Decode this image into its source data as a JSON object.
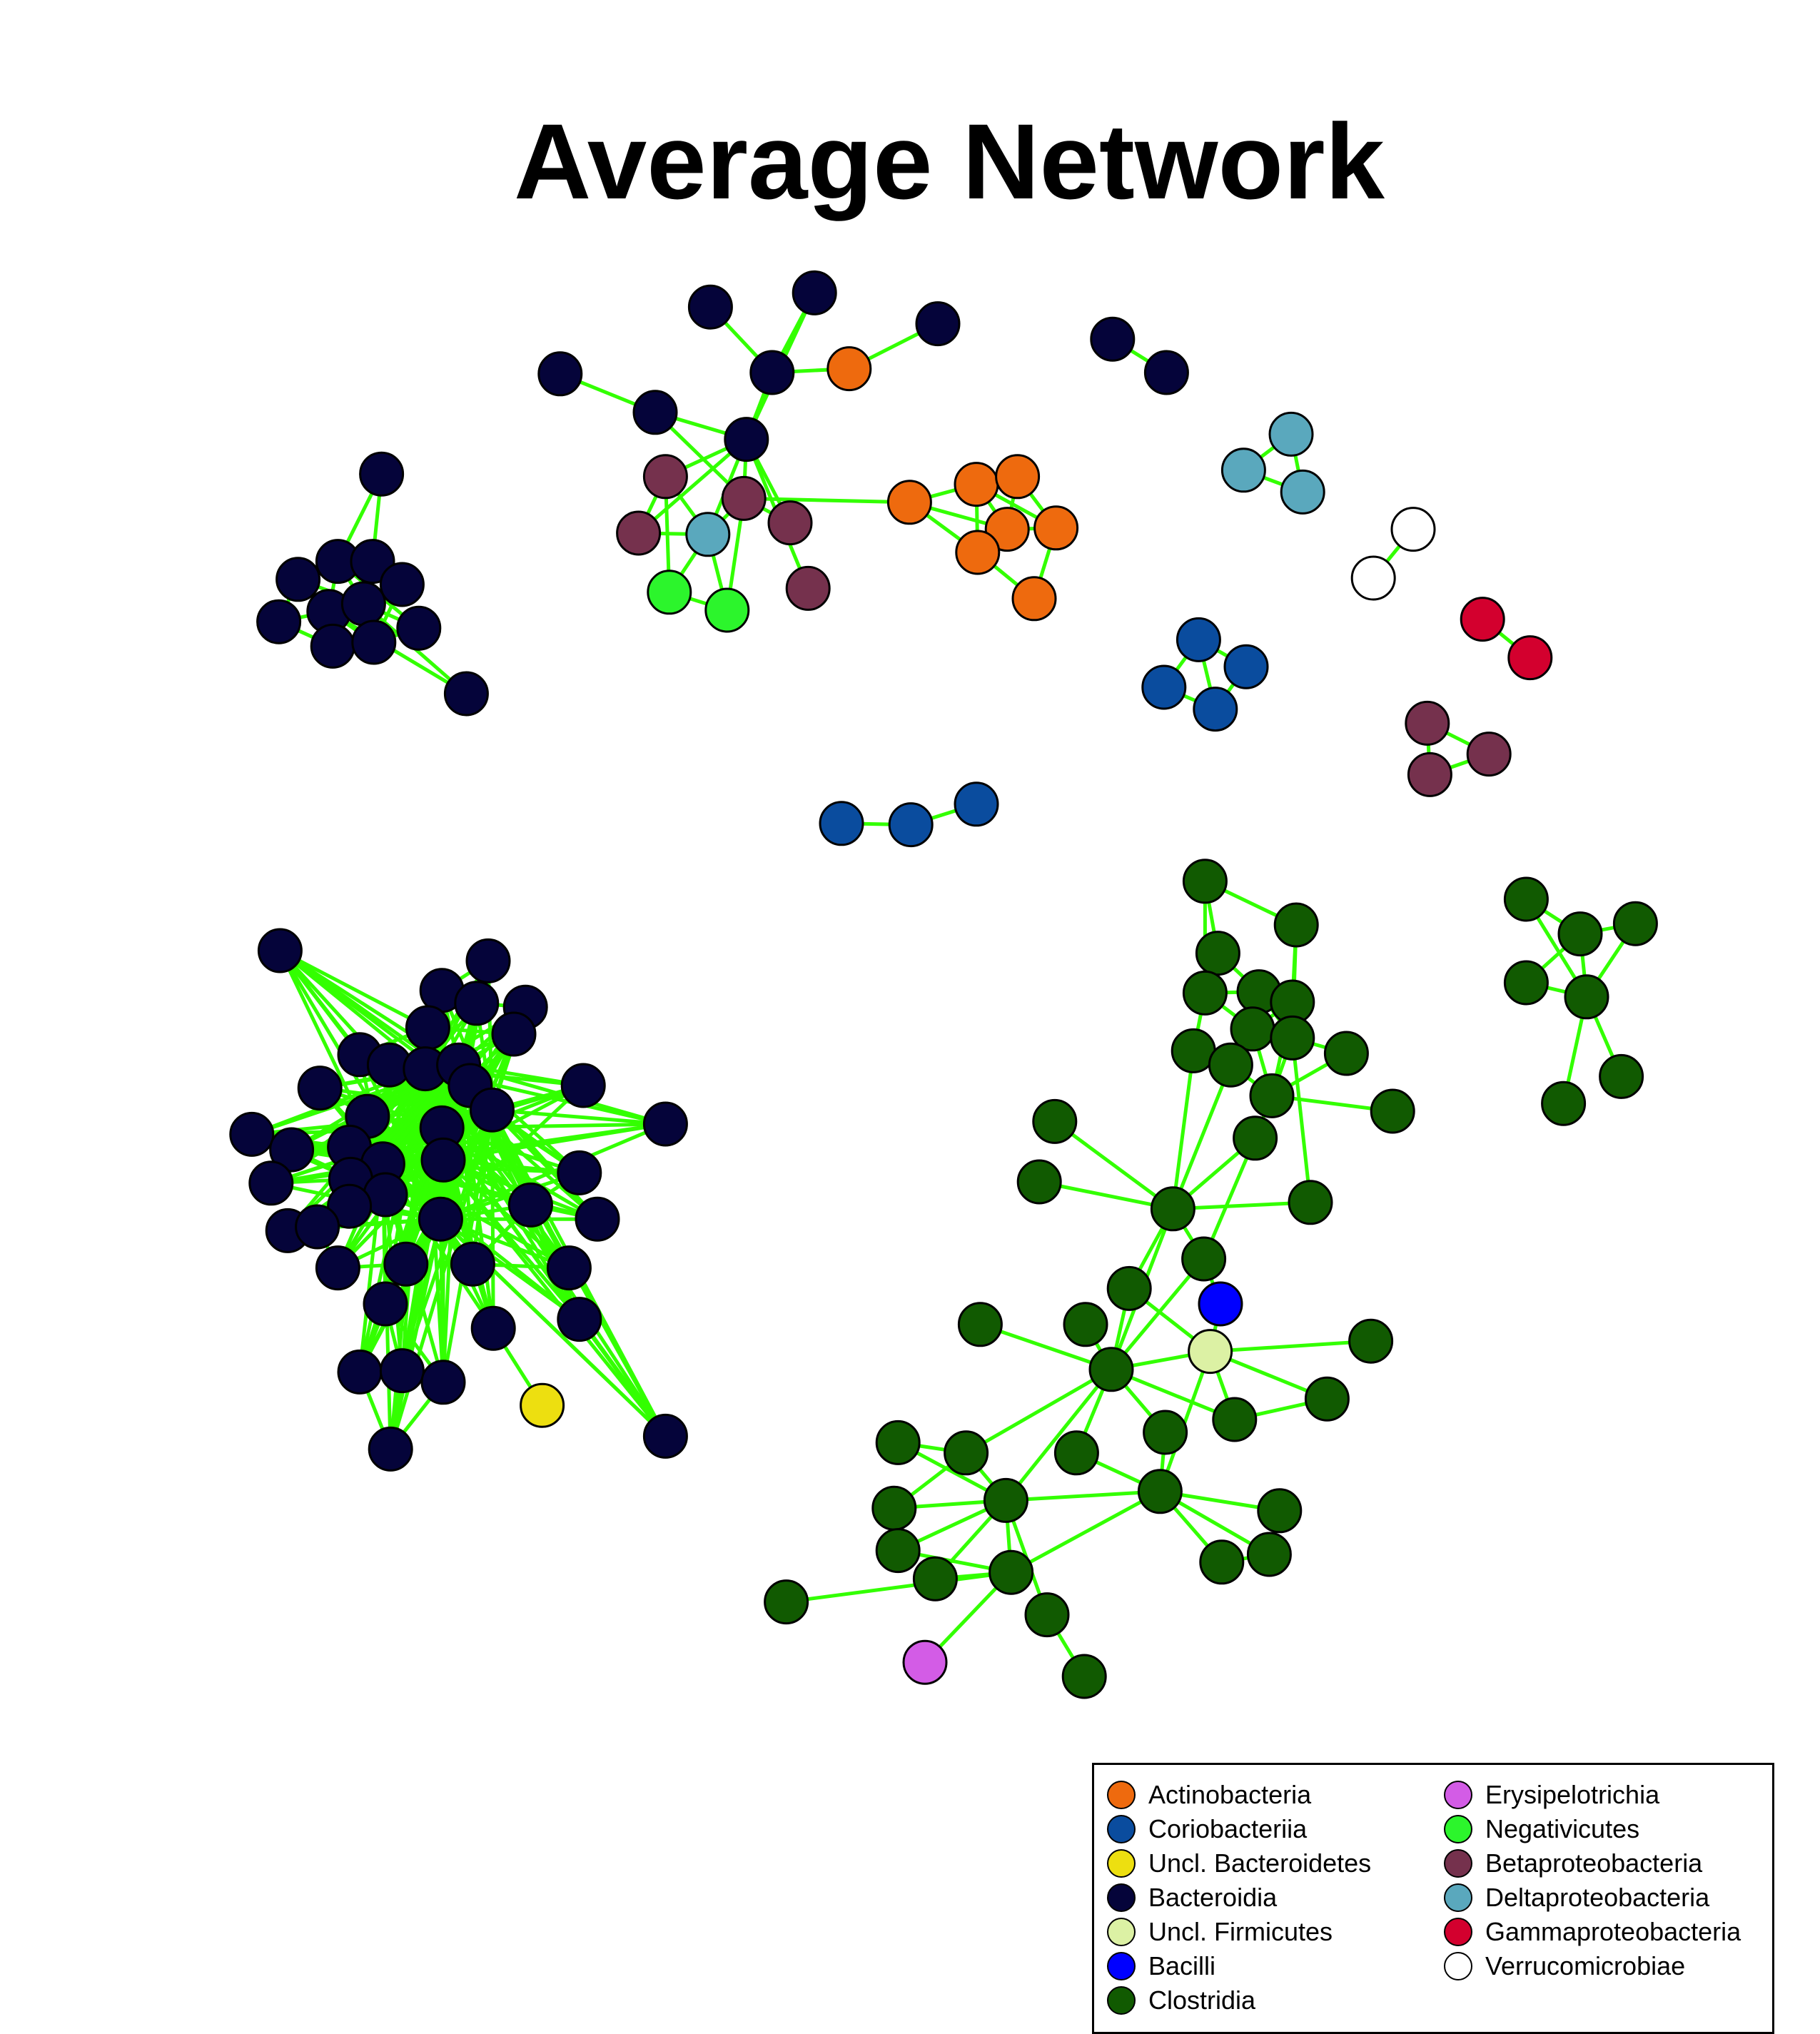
{
  "title": "Average Network",
  "edge_color": "#33ff00",
  "classes": {
    "act": {
      "label": "Actinobacteria",
      "color": "#ee6a0e"
    },
    "cor": {
      "label": "Coriobacteriia",
      "color": "#0a4c9e"
    },
    "ubac": {
      "label": "Uncl. Bacteroidetes",
      "color": "#eddf10"
    },
    "bac": {
      "label": "Bacteroidia",
      "color": "#05043a"
    },
    "ufir": {
      "label": "Uncl. Firmicutes",
      "color": "#dcf1a4"
    },
    "bcl": {
      "label": "Bacilli",
      "color": "#0000ff"
    },
    "clo": {
      "label": "Clostridia",
      "color": "#115a01"
    },
    "ery": {
      "label": "Erysipelotrichia",
      "color": "#d35ce6"
    },
    "neg": {
      "label": "Negativicutes",
      "color": "#2cf52c"
    },
    "beta": {
      "label": "Betaproteobacteria",
      "color": "#75314d"
    },
    "delta": {
      "label": "Deltaproteobacteria",
      "color": "#5aa8bd"
    },
    "gamma": {
      "label": "Gammaproteobacteria",
      "color": "#d3002e"
    },
    "ver": {
      "label": "Verrucomicrobiae",
      "color": "#ffffff"
    }
  },
  "legend": {
    "columns": [
      [
        "act",
        "cor",
        "ubac",
        "bac",
        "ufir",
        "bcl",
        "clo"
      ],
      [
        "ery",
        "neg",
        "beta",
        "delta",
        "gamma",
        "ver"
      ]
    ]
  }
}
